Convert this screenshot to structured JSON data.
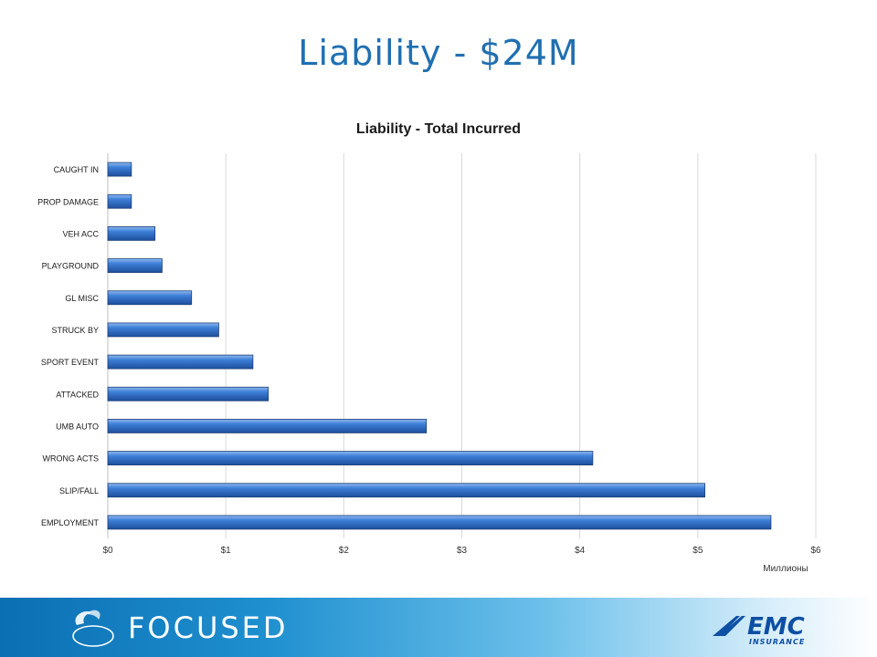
{
  "slide": {
    "title": "Liability - $24M"
  },
  "chart_data": {
    "type": "bar",
    "orientation": "horizontal",
    "title": "Liability - Total Incurred",
    "xlabel": "Миллионы",
    "ylabel": "",
    "categories": [
      "CAUGHT IN",
      "PROP DAMAGE",
      "VEH ACC",
      "PLAYGROUND",
      "GL MISC",
      "STRUCK BY",
      "SPORT EVENT",
      "ATTACKED",
      "UMB AUTO",
      "WRONG ACTS",
      "SLIP/FALL",
      "EMPLOYMENT"
    ],
    "values": [
      0.2,
      0.2,
      0.4,
      0.46,
      0.71,
      0.94,
      1.23,
      1.36,
      2.7,
      4.11,
      5.06,
      5.62
    ],
    "xlim": [
      0,
      6
    ],
    "x_ticks": [
      "$0",
      "$1",
      "$2",
      "$3",
      "$4",
      "$5",
      "$6"
    ],
    "grid": "vertical",
    "legend": "none",
    "bar_color": "#2e6fc9"
  },
  "footer": {
    "logo_left": "Trusted Choice",
    "tagline": "FOCUSED",
    "logo_right": "EMC INSURANCE"
  }
}
